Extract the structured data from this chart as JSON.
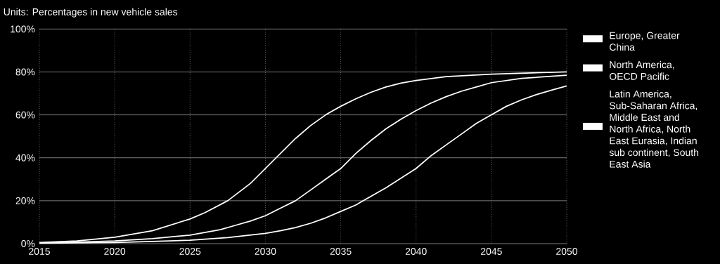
{
  "chart_data": {
    "type": "line",
    "title": "Units: Percentages in new vehicle sales",
    "xlim": [
      2015,
      2050
    ],
    "ylim": [
      0,
      100
    ],
    "xticks": [
      2015,
      2020,
      2025,
      2030,
      2035,
      2040,
      2045,
      2050
    ],
    "yticks": [
      {
        "value": 0,
        "label": "0%"
      },
      {
        "value": 20,
        "label": "20%"
      },
      {
        "value": 40,
        "label": "40%"
      },
      {
        "value": 60,
        "label": "60%"
      },
      {
        "value": 80,
        "label": "80%"
      },
      {
        "value": 100,
        "label": "100%"
      }
    ],
    "grid": true,
    "legend": "right",
    "marker": "none",
    "series": [
      {
        "name": "Europe, Greater China",
        "color": "#ffffff",
        "x": [
          2015,
          2017.5,
          2020,
          2022.5,
          2025,
          2026,
          2027.5,
          2029,
          2030,
          2031,
          2032,
          2033,
          2034,
          2035,
          2036,
          2037,
          2038,
          2039,
          2040,
          2042,
          2045,
          2050
        ],
        "values": [
          0.5,
          1.3,
          3,
          6,
          11.5,
          14.5,
          20,
          28,
          35,
          42,
          49,
          55,
          60,
          64,
          67.5,
          70.5,
          73,
          74.8,
          76,
          77.8,
          79,
          80
        ]
      },
      {
        "name": "North America, OECD Pacific",
        "color": "#ffffff",
        "x": [
          2015,
          2017.5,
          2020,
          2022.5,
          2025,
          2027,
          2028,
          2029,
          2030,
          2031,
          2032,
          2033,
          2034,
          2035,
          2036,
          2037,
          2038,
          2039,
          2040,
          2041,
          2042,
          2043,
          2044,
          2045,
          2047,
          2050
        ],
        "values": [
          0.3,
          0.7,
          1.3,
          2.3,
          4,
          6.5,
          8.5,
          10.5,
          13,
          16.5,
          20,
          25,
          30,
          35,
          42,
          48,
          53.5,
          58,
          62,
          65.5,
          68.5,
          71,
          73,
          75,
          77,
          78.5
        ]
      },
      {
        "name": "Latin America, Sub-Saharan Africa, Middle East and North Africa, North East Eurasia, Indian sub continent, South East Asia",
        "color": "#ffffff",
        "x": [
          2015,
          2020,
          2022.5,
          2025,
          2027.5,
          2030,
          2031,
          2032,
          2033,
          2034,
          2035,
          2036,
          2037,
          2038,
          2039,
          2040,
          2041,
          2042,
          2043,
          2044,
          2045,
          2046,
          2047,
          2048,
          2049,
          2050
        ],
        "values": [
          0.2,
          0.5,
          1,
          1.6,
          2.8,
          4.8,
          6,
          7.5,
          9.5,
          12,
          15,
          18,
          22,
          26,
          30.5,
          35,
          41,
          46,
          51,
          56,
          60,
          64,
          67,
          69.5,
          71.5,
          73.5
        ]
      }
    ]
  }
}
